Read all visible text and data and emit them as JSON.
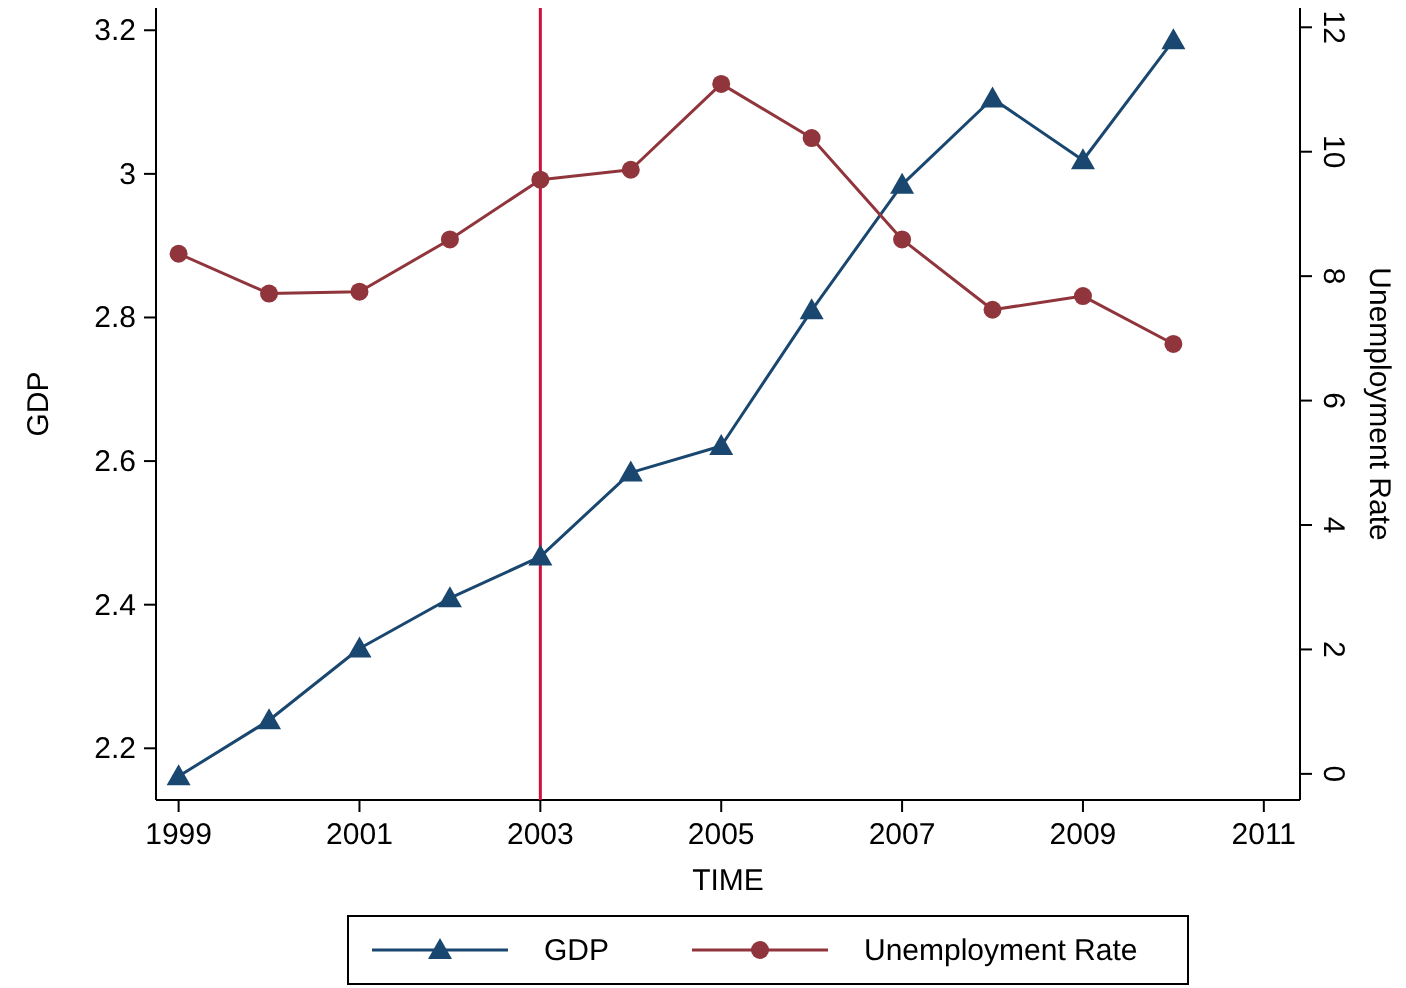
{
  "chart_data": {
    "type": "line",
    "xlabel": "TIME",
    "ylabel": "GDP",
    "y2label": "Unemployment Rate",
    "x": [
      1999,
      2000,
      2001,
      2002,
      2003,
      2004,
      2005,
      2006,
      2007,
      2008,
      2009,
      2010
    ],
    "series": [
      {
        "name": "GDP",
        "color": "#1a476f",
        "marker": "triangle",
        "values": [
          2.161,
          2.239,
          2.339,
          2.409,
          2.467,
          2.584,
          2.621,
          2.81,
          2.985,
          3.105,
          3.019,
          3.186
        ]
      },
      {
        "name": "Unemployment Rate",
        "color": "#90353b",
        "marker": "circle",
        "axis": "y2",
        "values": [
          8.36,
          7.72,
          7.75,
          8.59,
          9.55,
          9.71,
          11.09,
          10.22,
          8.59,
          7.46,
          7.68,
          6.91
        ]
      }
    ],
    "xlim": [
      1998.75,
      2011.4
    ],
    "xticks": [
      1999,
      2001,
      2003,
      2005,
      2007,
      2009,
      2011
    ],
    "ylim": [
      2.128,
      3.231
    ],
    "yticks": [
      2.2,
      2.4,
      2.6,
      2.8,
      3,
      3.2
    ],
    "y2lim": [
      -0.42,
      12.31
    ],
    "y2ticks": [
      0,
      2,
      4,
      6,
      8,
      10,
      12
    ],
    "ref_lines": [
      {
        "axis": "x",
        "value": 2003,
        "color": "#d0103a"
      }
    ],
    "grid": false,
    "legend": "bottom",
    "line_style": "solid"
  }
}
